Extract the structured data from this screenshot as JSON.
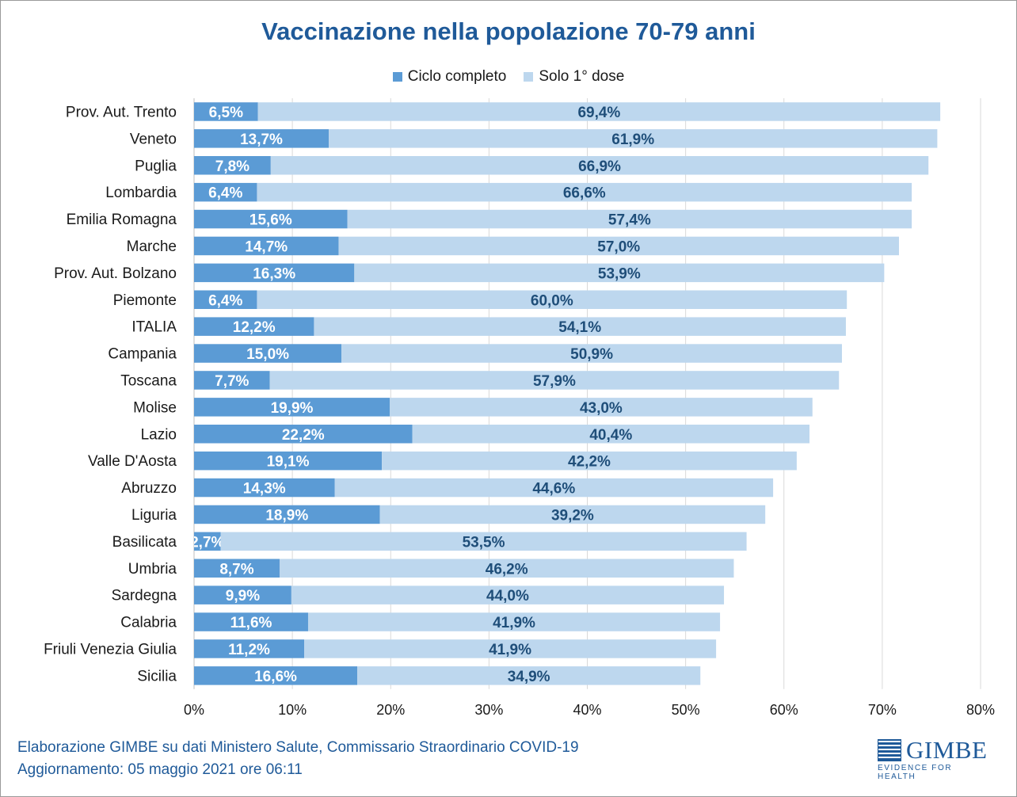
{
  "chart_data": {
    "type": "bar",
    "orientation": "horizontal",
    "stacked": true,
    "title": "Vaccinazione nella popolazione 70-79 anni",
    "xlabel": "",
    "ylabel": "",
    "xlim": [
      0,
      80
    ],
    "x_ticks": [
      "0%",
      "10%",
      "20%",
      "30%",
      "40%",
      "50%",
      "60%",
      "70%",
      "80%"
    ],
    "grid": "vertical",
    "legend_position": "top",
    "categories": [
      "Prov. Aut. Trento",
      "Veneto",
      "Puglia",
      "Lombardia",
      "Emilia Romagna",
      "Marche",
      "Prov. Aut. Bolzano",
      "Piemonte",
      "ITALIA",
      "Campania",
      "Toscana",
      "Molise",
      "Lazio",
      "Valle D'Aosta",
      "Abruzzo",
      "Liguria",
      "Basilicata",
      "Umbria",
      "Sardegna",
      "Calabria",
      "Friuli Venezia Giulia",
      "Sicilia"
    ],
    "series": [
      {
        "name": "Ciclo completo",
        "color": "#5b9bd5",
        "label_color": "#ffffff",
        "values": [
          6.5,
          13.7,
          7.8,
          6.4,
          15.6,
          14.7,
          16.3,
          6.4,
          12.2,
          15.0,
          7.7,
          19.9,
          22.2,
          19.1,
          14.3,
          18.9,
          2.7,
          8.7,
          9.9,
          11.6,
          11.2,
          16.6
        ],
        "labels": [
          "6,5%",
          "13,7%",
          "7,8%",
          "6,4%",
          "15,6%",
          "14,7%",
          "16,3%",
          "6,4%",
          "12,2%",
          "15,0%",
          "7,7%",
          "19,9%",
          "22,2%",
          "19,1%",
          "14,3%",
          "18,9%",
          "2,7%",
          "8,7%",
          "9,9%",
          "11,6%",
          "11,2%",
          "16,6%"
        ]
      },
      {
        "name": "Solo 1° dose",
        "color": "#bdd7ee",
        "label_color": "#1f4e79",
        "values": [
          69.4,
          61.9,
          66.9,
          66.6,
          57.4,
          57.0,
          53.9,
          60.0,
          54.1,
          50.9,
          57.9,
          43.0,
          40.4,
          42.2,
          44.6,
          39.2,
          53.5,
          46.2,
          44.0,
          41.9,
          41.9,
          34.9
        ],
        "labels": [
          "69,4%",
          "61,9%",
          "66,9%",
          "66,6%",
          "57,4%",
          "57,0%",
          "53,9%",
          "60,0%",
          "54,1%",
          "50,9%",
          "57,9%",
          "43,0%",
          "40,4%",
          "42,2%",
          "44,6%",
          "39,2%",
          "53,5%",
          "46,2%",
          "44,0%",
          "41,9%",
          "41,9%",
          "34,9%"
        ]
      }
    ]
  },
  "footer": {
    "source": "Elaborazione GIMBE su dati Ministero Salute, Commissario Straordinario COVID-19",
    "updated": "Aggiornamento: 05 maggio 2021 ore 06:11"
  },
  "logo": {
    "name": "GIMBE",
    "tagline": "EVIDENCE FOR HEALTH"
  }
}
